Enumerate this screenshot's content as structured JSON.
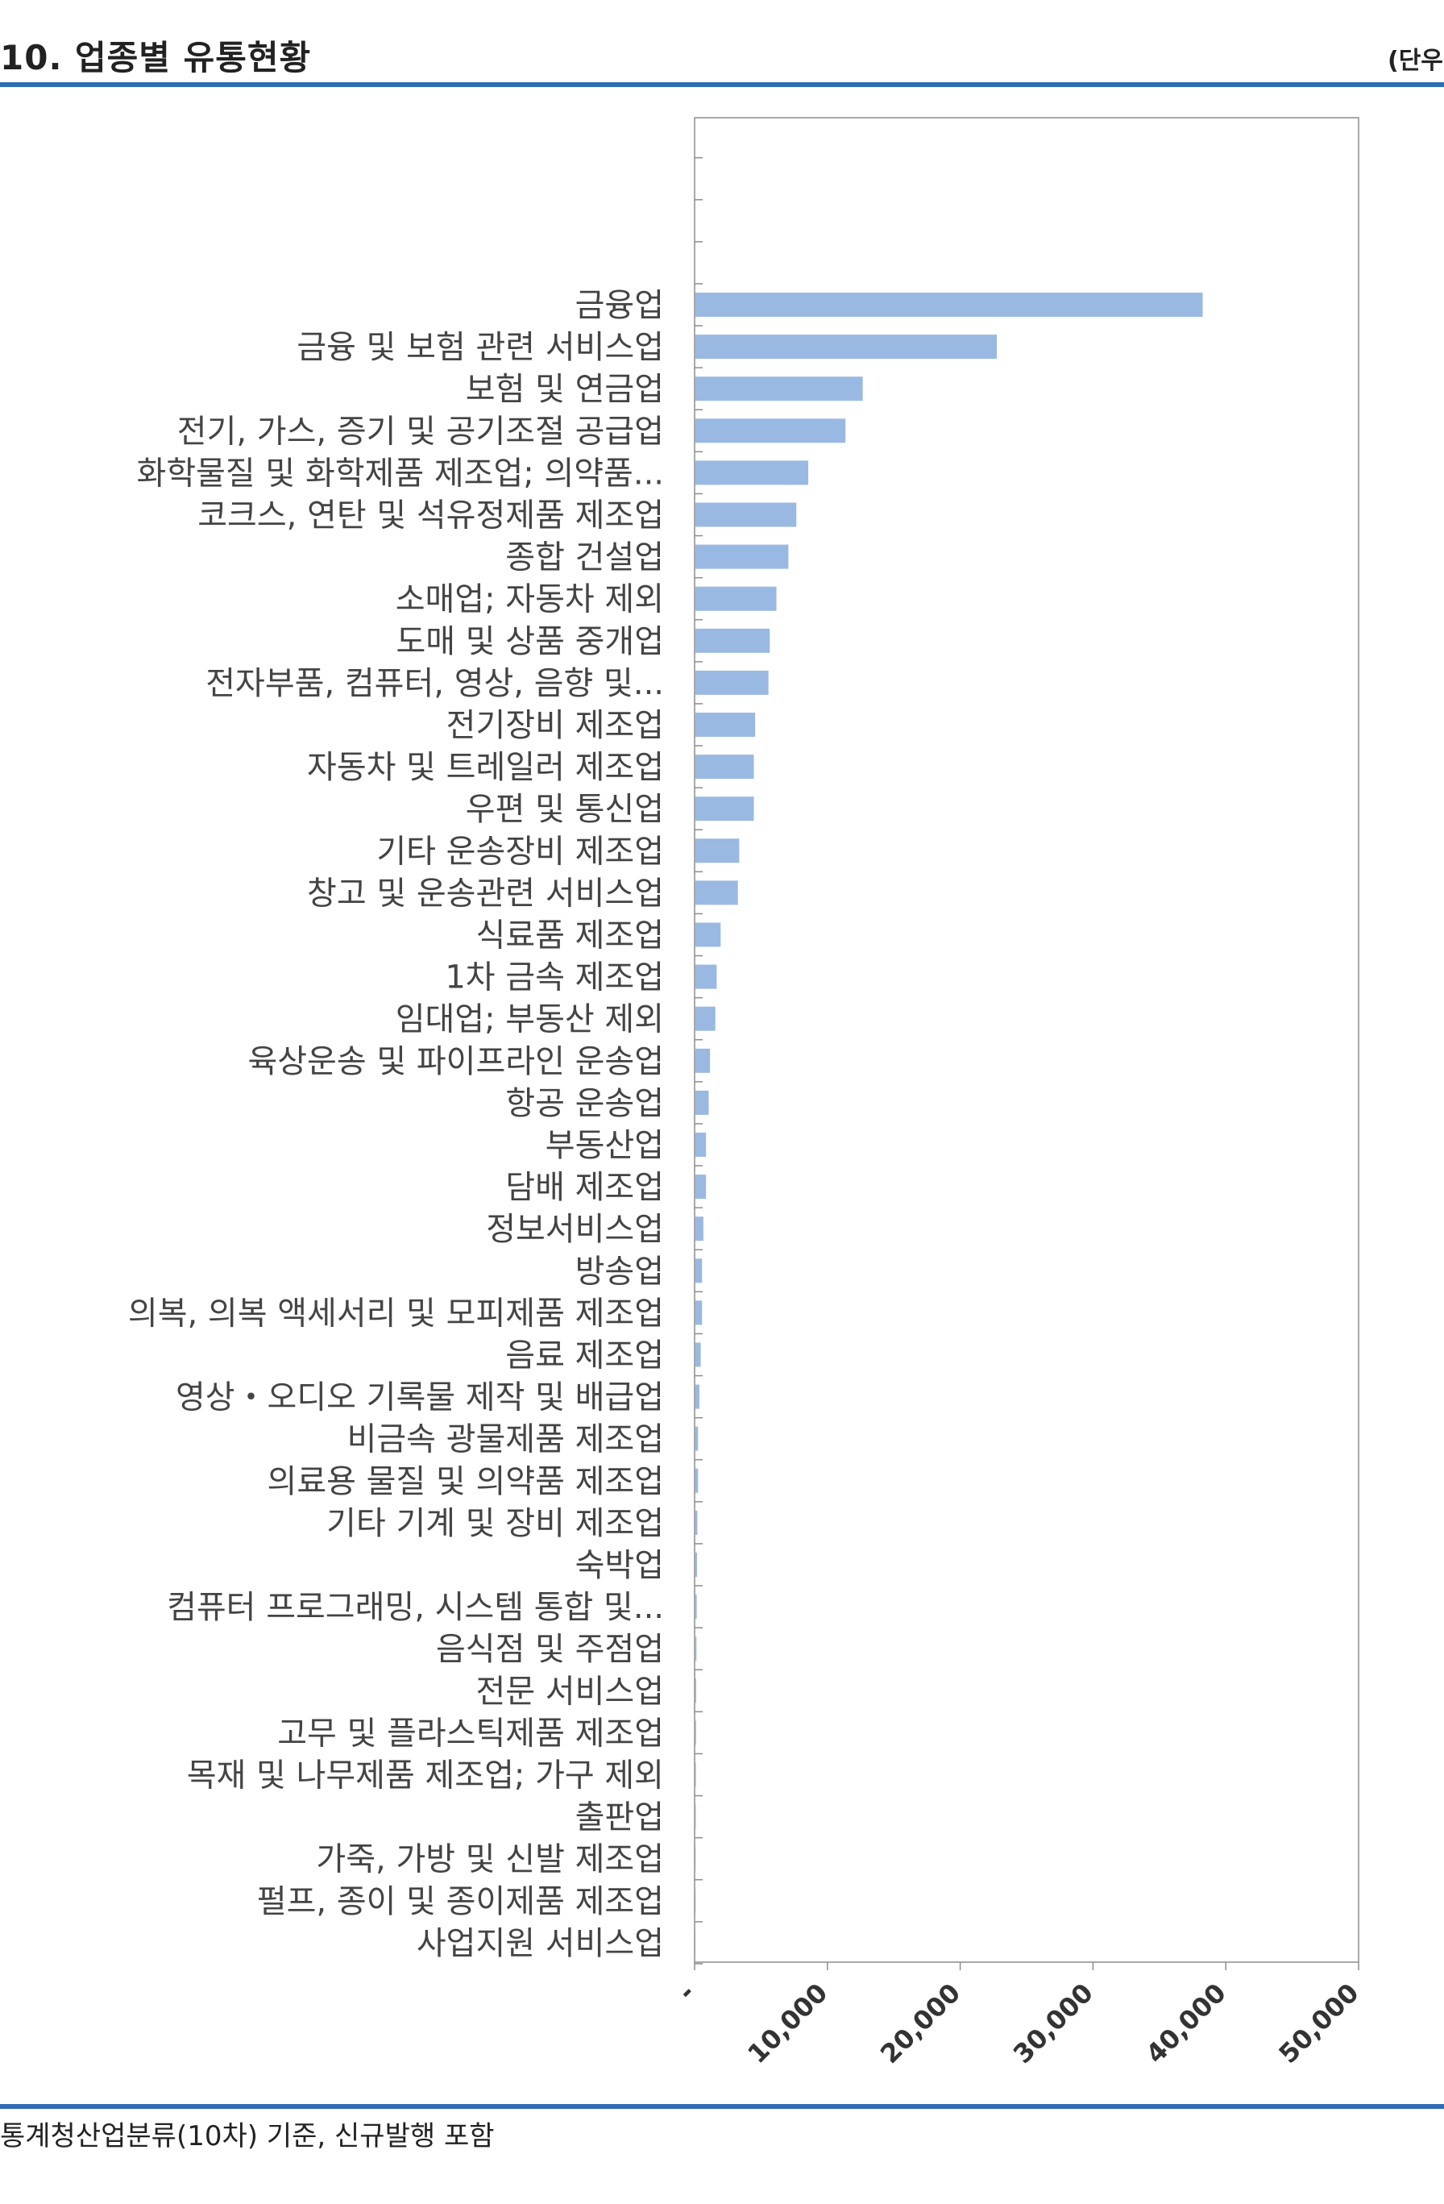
{
  "header": {
    "title": "10. 업종별 유통현황",
    "unit": "(단우"
  },
  "footer": {
    "note": "통계청산업분류(10차) 기준, 신규발행 포함"
  },
  "colors": {
    "bar": "#99b9e2",
    "rule": "#2e6db4",
    "axis": "#8c8c8c"
  },
  "chart_data": {
    "type": "bar",
    "orientation": "horizontal",
    "title": "",
    "xlabel": "",
    "ylabel": "",
    "xlim": [
      0,
      50000
    ],
    "x_ticks": [
      0,
      10000,
      20000,
      30000,
      40000,
      50000
    ],
    "x_tick_labels": [
      "-",
      "10,000",
      "20,000",
      "30,000",
      "40,000",
      "50,000"
    ],
    "grid": false,
    "legend": "none",
    "empty_slots_above": 4,
    "categories": [
      "금융업",
      "금융 및 보험 관련 서비스업",
      "보험 및 연금업",
      "전기, 가스, 증기 및 공기조절 공급업",
      "화학물질 및 화학제품 제조업; 의약품...",
      "코크스, 연탄 및 석유정제품 제조업",
      "종합 건설업",
      "소매업; 자동차 제외",
      "도매 및 상품 중개업",
      "전자부품, 컴퓨터, 영상, 음향 및...",
      "전기장비 제조업",
      "자동차 및 트레일러 제조업",
      "우편 및 통신업",
      "기타 운송장비 제조업",
      "창고 및 운송관련 서비스업",
      "식료품 제조업",
      "1차 금속 제조업",
      "임대업; 부동산 제외",
      "육상운송 및 파이프라인 운송업",
      "항공 운송업",
      "부동산업",
      "담배 제조업",
      "정보서비스업",
      "방송업",
      "의복, 의복 액세서리 및 모피제품 제조업",
      "음료 제조업",
      "영상・오디오 기록물 제작 및 배급업",
      "비금속 광물제품 제조업",
      "의료용 물질 및 의약품 제조업",
      "기타 기계 및 장비 제조업",
      "숙박업",
      "컴퓨터 프로그래밍, 시스템 통합 및...",
      "음식점 및 주점업",
      "전문 서비스업",
      "고무 및 플라스틱제품 제조업",
      "목재 및 나무제품 제조업; 가구 제외",
      "출판업",
      "가죽, 가방 및 신발 제조업",
      "펄프, 종이 및 종이제품 제조업",
      "사업지원 서비스업"
    ],
    "values": [
      38200,
      22700,
      12600,
      11300,
      8500,
      7600,
      7000,
      6100,
      5600,
      5500,
      4500,
      4400,
      4400,
      3300,
      3200,
      1900,
      1600,
      1500,
      1100,
      1000,
      800,
      800,
      600,
      500,
      500,
      400,
      300,
      200,
      200,
      150,
      120,
      100,
      80,
      60,
      50,
      40,
      30,
      20,
      20,
      10
    ]
  }
}
